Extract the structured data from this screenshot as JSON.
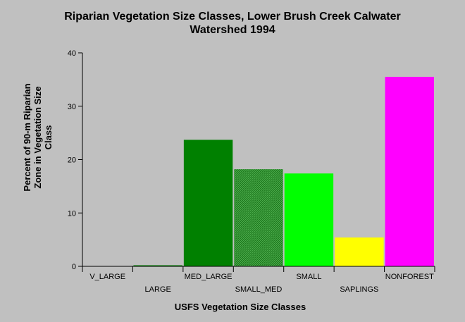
{
  "chart_data": {
    "type": "bar",
    "title": "Riparian Vegetation Size Classes, Lower Brush Creek Calwater Watershed 1994",
    "title_lines": [
      "Riparian Vegetation Size Classes, Lower Brush Creek Calwater",
      "Watershed 1994"
    ],
    "xlabel": "USFS Vegetation Size Classes",
    "ylabel": "Percent of 90-m Riparian Zone in Vegetation Size Class",
    "ylabel_lines": [
      "Percent of 90-m Riparian",
      "Zone in Vegetation Size",
      "Class"
    ],
    "categories": [
      "V_LARGE",
      "LARGE",
      "MED_LARGE",
      "SMALL_MED",
      "SMALL",
      "SAPLINGS",
      "NONFOREST"
    ],
    "values": [
      0,
      0.2,
      23.7,
      18.2,
      17.4,
      5.4,
      35.5
    ],
    "colors": [
      "#008000",
      "#008000",
      "#008000",
      "#2f8f2f",
      "#00ff00",
      "#ffff00",
      "#ff00ff"
    ],
    "hatched": [
      false,
      false,
      false,
      true,
      false,
      false,
      false
    ],
    "ylim": [
      0,
      40
    ],
    "yticks": [
      0,
      10,
      20,
      30,
      40
    ],
    "grid": false,
    "legend": "none"
  }
}
